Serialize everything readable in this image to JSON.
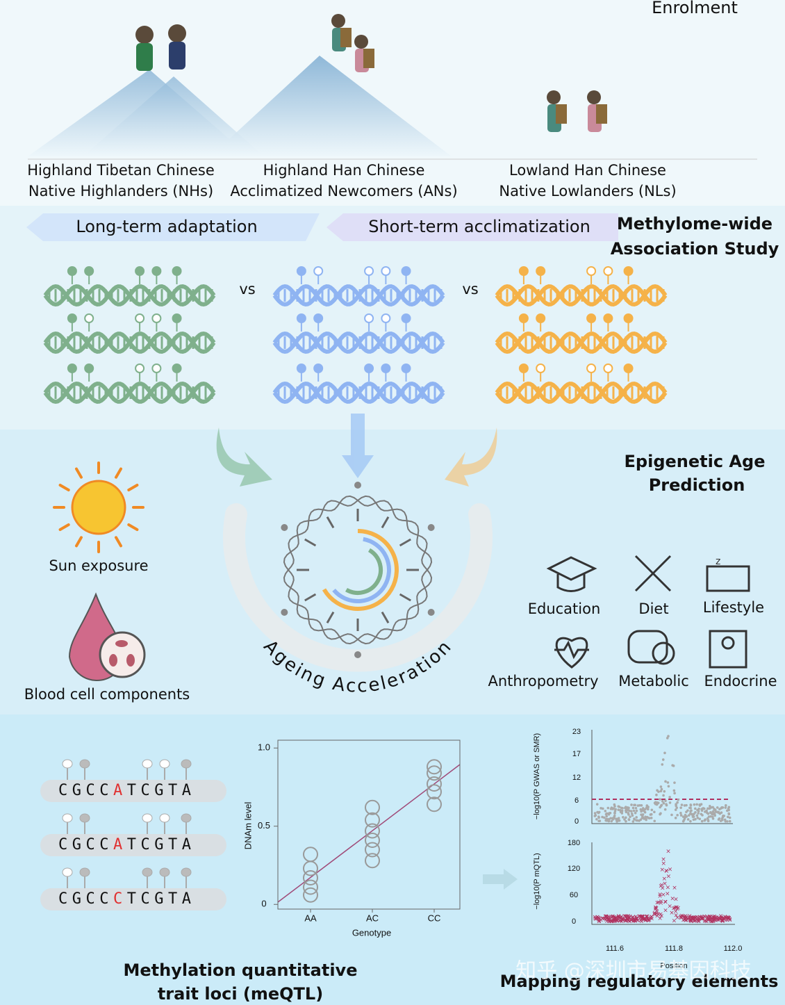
{
  "enrolment": {
    "title": "Enrolment",
    "groups": [
      {
        "line1": "Highland Tibetan Chinese",
        "line2": "Native Highlanders (NHs)"
      },
      {
        "line1": "Highland Han Chinese",
        "line2": "Acclimatized Newcomers (ANs)"
      },
      {
        "line1": "Lowland Han Chinese",
        "line2": "Native Lowlanders (NLs)"
      }
    ]
  },
  "mwas": {
    "arrows": [
      "Long-term adaptation",
      "Short-term acclimatization"
    ],
    "title_lines": [
      "Methylome-wide",
      "Association Study"
    ],
    "vs": [
      "vs",
      "vs"
    ]
  },
  "age": {
    "title_lines": [
      "Epigenetic Age",
      "Prediction"
    ],
    "factors_left": [
      "Sun exposure",
      "Blood cell components"
    ],
    "factors_right": [
      "Education",
      "Diet",
      "Lifestyle",
      "Anthropometry",
      "Metabolic",
      "Endocrine"
    ],
    "arc_label": "Ageing Acceleration"
  },
  "meqtl": {
    "title_lines": [
      "Methylation quantitative",
      "trait loci (meQTL)"
    ],
    "sequences": [
      {
        "before": "CGCC",
        "variant": "A",
        "after": "TCGTA"
      },
      {
        "before": "CGCC",
        "variant": "A",
        "after": "TCGTA"
      },
      {
        "before": "CGCC",
        "variant": "C",
        "after": "TCGTA"
      }
    ],
    "genotype_plot": {
      "type": "scatter",
      "xlabel": "Genotype",
      "ylabel": "DNAm level",
      "categories": [
        "AA",
        "AC",
        "CC"
      ],
      "ylim": [
        -0.03,
        1.05
      ],
      "yticks": [
        {
          "value": 1,
          "label": "1.0"
        },
        0.5,
        0
      ],
      "values": [
        [
          0.32,
          0.23,
          0.17,
          0.11,
          0.06
        ],
        [
          0.62,
          0.54,
          0.47,
          0.41,
          0.35,
          0.28
        ],
        [
          0.88,
          0.84,
          0.77,
          0.72,
          0.64
        ]
      ]
    }
  },
  "mapping": {
    "title": "Mapping regulatory elements",
    "top_ylabel": "−log10(P GWAS or SMR)",
    "top_yticks": [
      "23",
      "17",
      "12",
      "6",
      "0"
    ],
    "bottom_ylabel": "−log10(P mQTL)",
    "bottom_yticks": [
      "180",
      "120",
      "60",
      "0"
    ],
    "xticks": [
      "111.6",
      "111.8",
      "112.0"
    ],
    "xlabel": "Position"
  },
  "watermark": "知乎 @深圳市易基因科技"
}
